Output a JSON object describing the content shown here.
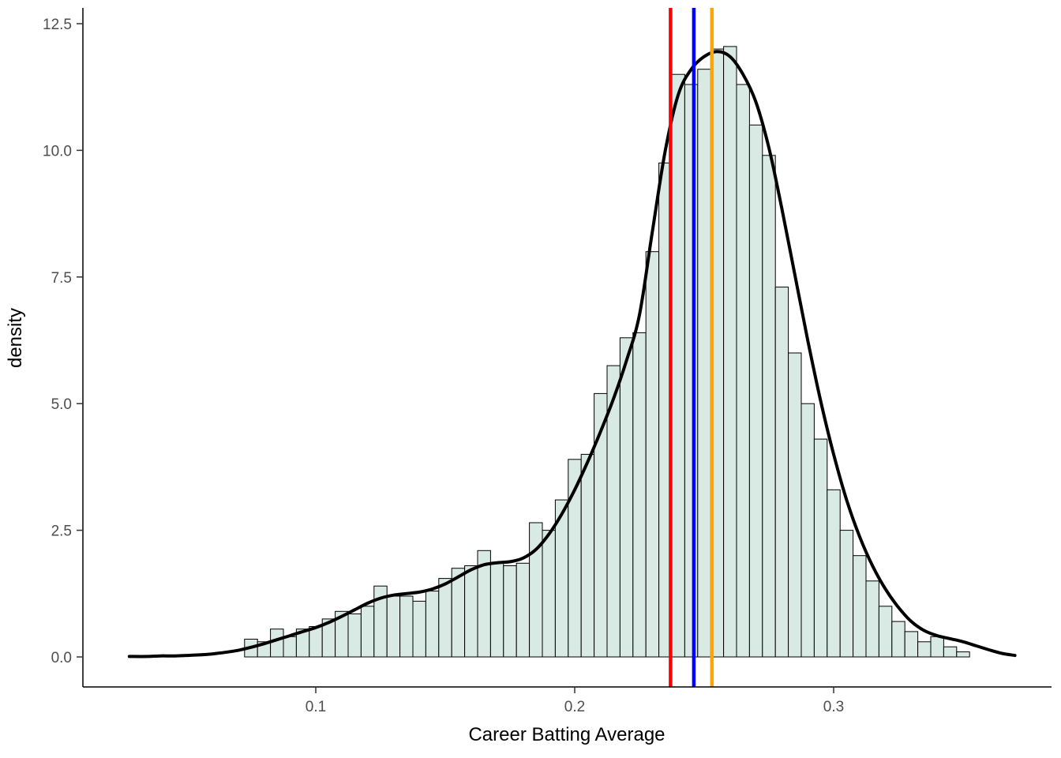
{
  "chart_data": {
    "type": "bar",
    "subtype": "histogram-with-density-overlay",
    "title": "",
    "xlabel": "Career Batting Average",
    "ylabel": "density",
    "grid": false,
    "legend": "none",
    "xlim": [
      0.01,
      0.384
    ],
    "ylim": [
      0,
      12.5
    ],
    "x_ticks": {
      "values": [
        0.1,
        0.2,
        0.3
      ],
      "labels": [
        "0.1",
        "0.2",
        "0.3"
      ]
    },
    "y_ticks": {
      "values": [
        0,
        2.5,
        5,
        7.5,
        10,
        12.5
      ],
      "labels": [
        "0.0",
        "2.5",
        "5.0",
        "7.5",
        "10.0",
        "12.5"
      ]
    },
    "histogram": {
      "bin_start": 0.0725,
      "bin_width": 0.005,
      "densities": [
        0.35,
        0.3,
        0.55,
        0.4,
        0.55,
        0.6,
        0.75,
        0.9,
        0.85,
        1.0,
        1.4,
        1.2,
        1.2,
        1.1,
        1.3,
        1.55,
        1.75,
        1.8,
        2.1,
        1.85,
        1.8,
        1.85,
        2.65,
        2.5,
        3.1,
        3.9,
        4.0,
        5.2,
        5.75,
        6.3,
        6.4,
        8.0,
        9.75,
        11.5,
        11.3,
        11.6,
        12.0,
        12.05,
        11.3,
        10.5,
        9.9,
        7.3,
        6.0,
        5.0,
        4.3,
        3.3,
        2.5,
        2.0,
        1.5,
        1.0,
        0.7,
        0.5,
        0.3,
        0.4,
        0.2,
        0.1
      ]
    },
    "density_curve": {
      "x": [
        0.028,
        0.035,
        0.04,
        0.045,
        0.05,
        0.055,
        0.06,
        0.065,
        0.07,
        0.075,
        0.08,
        0.085,
        0.09,
        0.095,
        0.1,
        0.105,
        0.11,
        0.115,
        0.12,
        0.125,
        0.13,
        0.135,
        0.14,
        0.145,
        0.15,
        0.155,
        0.16,
        0.165,
        0.17,
        0.175,
        0.18,
        0.185,
        0.19,
        0.195,
        0.2,
        0.205,
        0.21,
        0.215,
        0.22,
        0.225,
        0.23,
        0.235,
        0.24,
        0.245,
        0.25,
        0.255,
        0.26,
        0.265,
        0.27,
        0.275,
        0.28,
        0.285,
        0.29,
        0.295,
        0.3,
        0.305,
        0.31,
        0.315,
        0.32,
        0.325,
        0.33,
        0.335,
        0.34,
        0.345,
        0.35,
        0.355,
        0.36,
        0.365,
        0.37
      ],
      "y": [
        0.01,
        0.01,
        0.02,
        0.02,
        0.03,
        0.04,
        0.06,
        0.09,
        0.13,
        0.19,
        0.26,
        0.34,
        0.42,
        0.5,
        0.58,
        0.68,
        0.8,
        0.93,
        1.06,
        1.16,
        1.22,
        1.25,
        1.28,
        1.34,
        1.44,
        1.58,
        1.72,
        1.82,
        1.86,
        1.88,
        1.95,
        2.12,
        2.42,
        2.82,
        3.3,
        3.85,
        4.45,
        5.1,
        5.85,
        6.75,
        8.4,
        10.0,
        11.1,
        11.6,
        11.85,
        11.95,
        11.85,
        11.5,
        10.95,
        10.05,
        8.85,
        7.55,
        6.25,
        5.05,
        4.0,
        3.1,
        2.38,
        1.8,
        1.34,
        0.98,
        0.7,
        0.52,
        0.42,
        0.36,
        0.3,
        0.22,
        0.14,
        0.07,
        0.03
      ]
    },
    "vlines": [
      {
        "name": "red-vline",
        "x": 0.237,
        "color": "#FF0000"
      },
      {
        "name": "blue-vline",
        "x": 0.246,
        "color": "#0000FF"
      },
      {
        "name": "orange-vline",
        "x": 0.253,
        "color": "#FFA500"
      }
    ],
    "colors": {
      "bar_fill": "#D9EAE5",
      "bar_stroke": "#000000",
      "density_line": "#000000",
      "axis_text": "#4D4D4D",
      "tick_mark": "#333333",
      "axis_title": "#000000",
      "axis_line": "#000000",
      "background": "#FFFFFF"
    }
  }
}
